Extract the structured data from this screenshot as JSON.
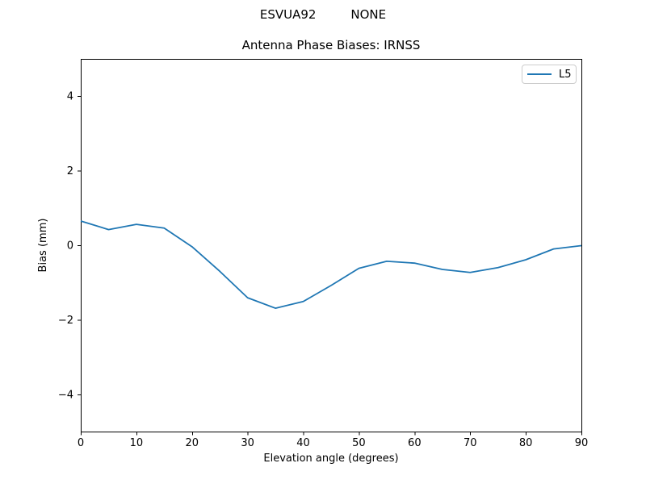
{
  "figure": {
    "suptitle": "ESVUA92         NONE",
    "title": "Antenna Phase Biases: IRNSS"
  },
  "chart_data": {
    "type": "line",
    "suptitle": "ESVUA92         NONE",
    "title": "Antenna Phase Biases: IRNSS",
    "xlabel": "Elevation angle (degrees)",
    "ylabel": "Bias (mm)",
    "xlim": [
      0,
      90
    ],
    "ylim": [
      -5,
      5
    ],
    "xticks": [
      0,
      10,
      20,
      30,
      40,
      50,
      60,
      70,
      80,
      90
    ],
    "xticklabels": [
      "0",
      "10",
      "20",
      "30",
      "40",
      "50",
      "60",
      "70",
      "80",
      "90"
    ],
    "yticks": [
      -4,
      -2,
      0,
      2,
      4
    ],
    "yticklabels": [
      "−4",
      "−2",
      "0",
      "2",
      "4"
    ],
    "grid": false,
    "legend_position": "upper right",
    "x": [
      0,
      5,
      10,
      15,
      20,
      25,
      30,
      35,
      40,
      45,
      50,
      55,
      60,
      65,
      70,
      75,
      80,
      85,
      90
    ],
    "series": [
      {
        "name": "L5",
        "color": "#1f77b4",
        "values": [
          0.65,
          0.42,
          0.56,
          0.46,
          -0.04,
          -0.7,
          -1.41,
          -1.69,
          -1.51,
          -1.08,
          -0.62,
          -0.43,
          -0.48,
          -0.65,
          -0.73,
          -0.6,
          -0.39,
          -0.1,
          -0.01
        ]
      }
    ]
  },
  "colors": {
    "background": "#ffffff",
    "spine": "#000000",
    "tick": "#000000",
    "legend_border": "#cccccc",
    "series_L5": "#1f77b4"
  }
}
